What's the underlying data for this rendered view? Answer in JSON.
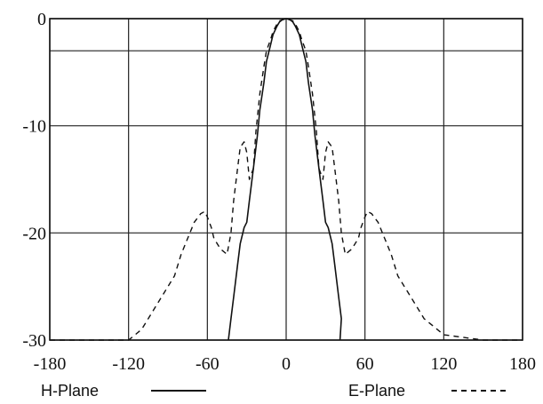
{
  "chart_data": {
    "type": "line",
    "title": "",
    "xlabel": "",
    "ylabel": "",
    "xlim": [
      -180,
      180
    ],
    "ylim": [
      -30,
      0
    ],
    "x_ticks": [
      -180,
      -120,
      -60,
      0,
      60,
      120,
      180
    ],
    "y_ticks": [
      0,
      -10,
      -20,
      -30
    ],
    "x_tick_labels": [
      "-180",
      "-120",
      "-60",
      "0",
      "60",
      "120",
      "180"
    ],
    "y_tick_labels": [
      "0",
      "-10",
      "-20",
      "-30"
    ],
    "reference_lines_y": [
      -3
    ],
    "grid": true,
    "legend_position": "bottom",
    "series": [
      {
        "name": "H-Plane",
        "style": "solid",
        "color": "#111111",
        "x": [
          -44,
          -42,
          -40,
          -37,
          -35,
          -32,
          -30,
          -28,
          -25,
          -22,
          -20,
          -17,
          -15,
          -12,
          -10,
          -7,
          -5,
          -3,
          0,
          3,
          5,
          7,
          10,
          12,
          15,
          17,
          20,
          22,
          25,
          28,
          30,
          32,
          35,
          37,
          40,
          42,
          41
        ],
        "y": [
          -30,
          -28,
          -26,
          -23,
          -21,
          -19.5,
          -19,
          -17,
          -14,
          -11,
          -8.5,
          -6,
          -4,
          -2.5,
          -1.5,
          -0.7,
          -0.3,
          -0.1,
          0,
          -0.1,
          -0.3,
          -0.7,
          -1.5,
          -2.5,
          -4,
          -6,
          -8.5,
          -11,
          -14,
          -17,
          -19,
          -19.5,
          -21,
          -23,
          -26,
          -28,
          -30
        ]
      },
      {
        "name": "E-Plane",
        "style": "dashed",
        "color": "#111111",
        "x": [
          -180,
          -150,
          -120,
          -115,
          -110,
          -105,
          -100,
          -95,
          -90,
          -85,
          -80,
          -75,
          -70,
          -65,
          -62,
          -60,
          -57,
          -55,
          -50,
          -45,
          -42,
          -40,
          -37,
          -35,
          -32,
          -30,
          -28,
          -25,
          -23,
          -20,
          -17,
          -15,
          -12,
          -10,
          -7,
          -5,
          0,
          5,
          7,
          10,
          12,
          15,
          17,
          20,
          23,
          25,
          28,
          30,
          32,
          35,
          37,
          40,
          42,
          45,
          50,
          55,
          57,
          60,
          62,
          65,
          70,
          75,
          80,
          85,
          90,
          95,
          100,
          105,
          110,
          115,
          120,
          150,
          180
        ],
        "y": [
          -30,
          -30,
          -30,
          -29.5,
          -29,
          -28,
          -27,
          -26,
          -25,
          -24,
          -22,
          -20.5,
          -19,
          -18.2,
          -18,
          -18.5,
          -19.5,
          -20.5,
          -21.5,
          -22,
          -20,
          -17,
          -14,
          -12,
          -11.5,
          -12.5,
          -15,
          -14,
          -10.5,
          -7,
          -4.5,
          -3,
          -2,
          -1.2,
          -0.5,
          -0.2,
          0,
          -0.2,
          -0.5,
          -1.2,
          -2,
          -3,
          -4.5,
          -7,
          -10.5,
          -14,
          -15,
          -12.5,
          -11.5,
          -12,
          -14,
          -17,
          -20,
          -22,
          -21.5,
          -20.5,
          -19.5,
          -18.5,
          -18,
          -18.2,
          -19,
          -20.5,
          -22,
          -24,
          -25,
          -26,
          -27,
          -28,
          -28.5,
          -29,
          -29.5,
          -30,
          -30
        ]
      }
    ]
  }
}
